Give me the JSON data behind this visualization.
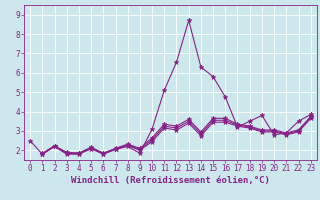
{
  "xlabel": "Windchill (Refroidissement éolien,°C)",
  "background_color": "#cce8ec",
  "line_color": "#882288",
  "grid_color": "#ffffff",
  "xlim": [
    -0.5,
    23.5
  ],
  "ylim": [
    1.5,
    9.5
  ],
  "yticks": [
    2,
    3,
    4,
    5,
    6,
    7,
    8,
    9
  ],
  "xticks": [
    0,
    1,
    2,
    3,
    4,
    5,
    6,
    7,
    8,
    9,
    10,
    11,
    12,
    13,
    14,
    15,
    16,
    17,
    18,
    19,
    20,
    21,
    22,
    23
  ],
  "series": [
    {
      "x": [
        0,
        1,
        2,
        3,
        4,
        5,
        6,
        7,
        8,
        9,
        10,
        11,
        12,
        13,
        14,
        15,
        16,
        17,
        18,
        19,
        20,
        21,
        22,
        23
      ],
      "y": [
        2.5,
        1.8,
        2.2,
        1.8,
        1.8,
        2.1,
        1.8,
        2.05,
        2.2,
        1.85,
        3.1,
        5.1,
        6.55,
        8.7,
        6.3,
        5.8,
        4.75,
        3.2,
        3.5,
        3.8,
        2.8,
        2.9,
        3.5,
        3.85
      ]
    },
    {
      "x": [
        1,
        2,
        3,
        4,
        5,
        6,
        7,
        8,
        9,
        10,
        11,
        12,
        13,
        14,
        15,
        16,
        17,
        18,
        19,
        20,
        21,
        22,
        23
      ],
      "y": [
        1.8,
        2.2,
        1.85,
        1.82,
        2.08,
        1.82,
        2.05,
        2.25,
        2.0,
        2.45,
        3.15,
        3.05,
        3.4,
        2.75,
        3.45,
        3.45,
        3.25,
        3.15,
        2.95,
        2.95,
        2.8,
        2.95,
        3.65
      ]
    },
    {
      "x": [
        1,
        2,
        3,
        4,
        5,
        6,
        7,
        8,
        9,
        10,
        11,
        12,
        13,
        14,
        15,
        16,
        17,
        18,
        19,
        20,
        21,
        22,
        23
      ],
      "y": [
        1.82,
        2.22,
        1.87,
        1.84,
        2.12,
        1.84,
        2.08,
        2.28,
        2.05,
        2.55,
        3.25,
        3.15,
        3.5,
        2.85,
        3.55,
        3.55,
        3.3,
        3.2,
        3.0,
        3.0,
        2.85,
        3.0,
        3.7
      ]
    },
    {
      "x": [
        1,
        2,
        3,
        4,
        5,
        6,
        7,
        8,
        9,
        10,
        11,
        12,
        13,
        14,
        15,
        16,
        17,
        18,
        19,
        20,
        21,
        22,
        23
      ],
      "y": [
        1.84,
        2.24,
        1.89,
        1.86,
        2.16,
        1.86,
        2.1,
        2.32,
        2.1,
        2.65,
        3.35,
        3.25,
        3.6,
        2.95,
        3.65,
        3.65,
        3.35,
        3.25,
        3.05,
        3.05,
        2.9,
        3.05,
        3.75
      ]
    }
  ],
  "marker": "*",
  "markersize": 3.5,
  "linewidth": 0.8,
  "tick_fontsize": 5.5,
  "label_fontsize": 6.5
}
